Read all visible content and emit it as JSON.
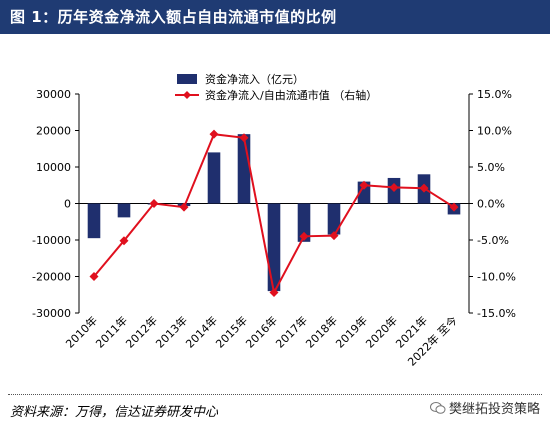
{
  "title": "图 1：历年资金净流入额占自由流通市值的比例",
  "source": "资料来源：万得，信达证券研发中心",
  "watermark": "樊继拓投资策略",
  "colors": {
    "bar": "#1f2f6e",
    "line": "#e0101e",
    "title_bg": "#1f3b73"
  },
  "chart_data": {
    "type": "bar+line",
    "categories": [
      "2010年",
      "2011年",
      "2012年",
      "2013年",
      "2014年",
      "2015年",
      "2016年",
      "2017年",
      "2018年",
      "2019年",
      "2020年",
      "2021年",
      "2022年 至今"
    ],
    "series": [
      {
        "name": "资金净流入（亿元）",
        "type": "bar",
        "axis": "left",
        "values": [
          -9500,
          -3800,
          -200,
          -700,
          14000,
          19000,
          -24000,
          -10500,
          -8500,
          6000,
          7000,
          8000,
          -3000
        ]
      },
      {
        "name": "资金净流入/自由流通市值    （右轴）",
        "type": "line",
        "axis": "right",
        "values": [
          -10.0,
          -5.1,
          0.0,
          -0.5,
          9.5,
          9.0,
          -12.2,
          -4.5,
          -4.4,
          2.5,
          2.2,
          2.1,
          -0.5
        ]
      }
    ],
    "left_axis": {
      "ylim": [
        -30000,
        30000
      ],
      "ticks": [
        30000,
        20000,
        10000,
        0,
        -10000,
        -20000,
        -30000
      ],
      "tick_labels": [
        "30000",
        "20000",
        "10000",
        "0",
        "-10000",
        "-20000",
        "-30000"
      ]
    },
    "right_axis": {
      "ylim": [
        -15,
        15
      ],
      "ticks": [
        15,
        10,
        5,
        0,
        -5,
        -10,
        -15
      ],
      "tick_labels": [
        "15.0%",
        "10.0%",
        "5.0%",
        "0.0%",
        "-5.0%",
        "-10.0%",
        "-15.0%"
      ]
    },
    "legend": "top-center",
    "grid": false
  }
}
